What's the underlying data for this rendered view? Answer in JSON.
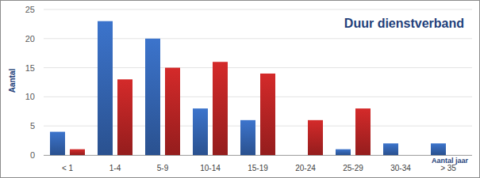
{
  "chart_data": {
    "type": "bar",
    "title": "Duur dienstverband",
    "y_label": "Aantal",
    "x_label": "Aantal jaar",
    "categories": [
      "< 1",
      "1-4",
      "5-9",
      "10-14",
      "15-19",
      "20-24",
      "25-29",
      "30-34",
      "> 35"
    ],
    "series": [
      {
        "color": "#3c74cc",
        "values": [
          4,
          23,
          20,
          8,
          6,
          0,
          1,
          2,
          2
        ]
      },
      {
        "color": "#d42a2a",
        "values": [
          1,
          13,
          15,
          16,
          14,
          6,
          8,
          0,
          0
        ]
      }
    ],
    "ylim": [
      0,
      25
    ],
    "yticks": [
      0,
      5,
      10,
      15,
      20,
      25
    ],
    "grid": true
  }
}
